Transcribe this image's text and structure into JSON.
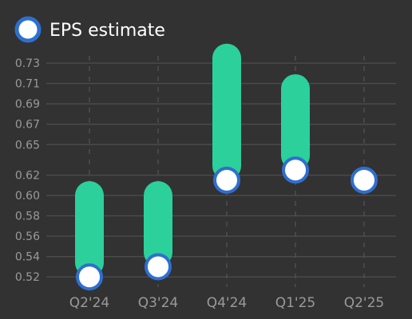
{
  "chart_data": {
    "type": "bar",
    "categories": [
      "Q2'24",
      "Q3'24",
      "Q4'24",
      "Q1'25",
      "Q2'25"
    ],
    "series": [
      {
        "name": "",
        "role": "actual",
        "values": [
          0.6,
          0.6,
          0.735,
          0.705,
          null
        ]
      },
      {
        "name": "EPS estimate",
        "role": "estimate",
        "values": [
          0.52,
          0.53,
          0.615,
          0.625,
          0.615
        ]
      }
    ],
    "yticks": [
      "0.52",
      "0.54",
      "0.56",
      "0.58",
      "0.60",
      "0.62",
      "0.65",
      "0.67",
      "0.69",
      "0.71",
      "0.73"
    ],
    "title": "",
    "xlabel": "",
    "ylabel": "",
    "ylim": [
      0.51,
      0.745
    ],
    "grid": true,
    "legend": "top-left",
    "colors": {
      "background": "#323232",
      "actual_bar": "#2bd09b",
      "estimate_fill": "#ffffff",
      "estimate_stroke": "#2f6fcf",
      "grid": "#4a4a4a",
      "tick_text": "#9a9a9a"
    }
  }
}
